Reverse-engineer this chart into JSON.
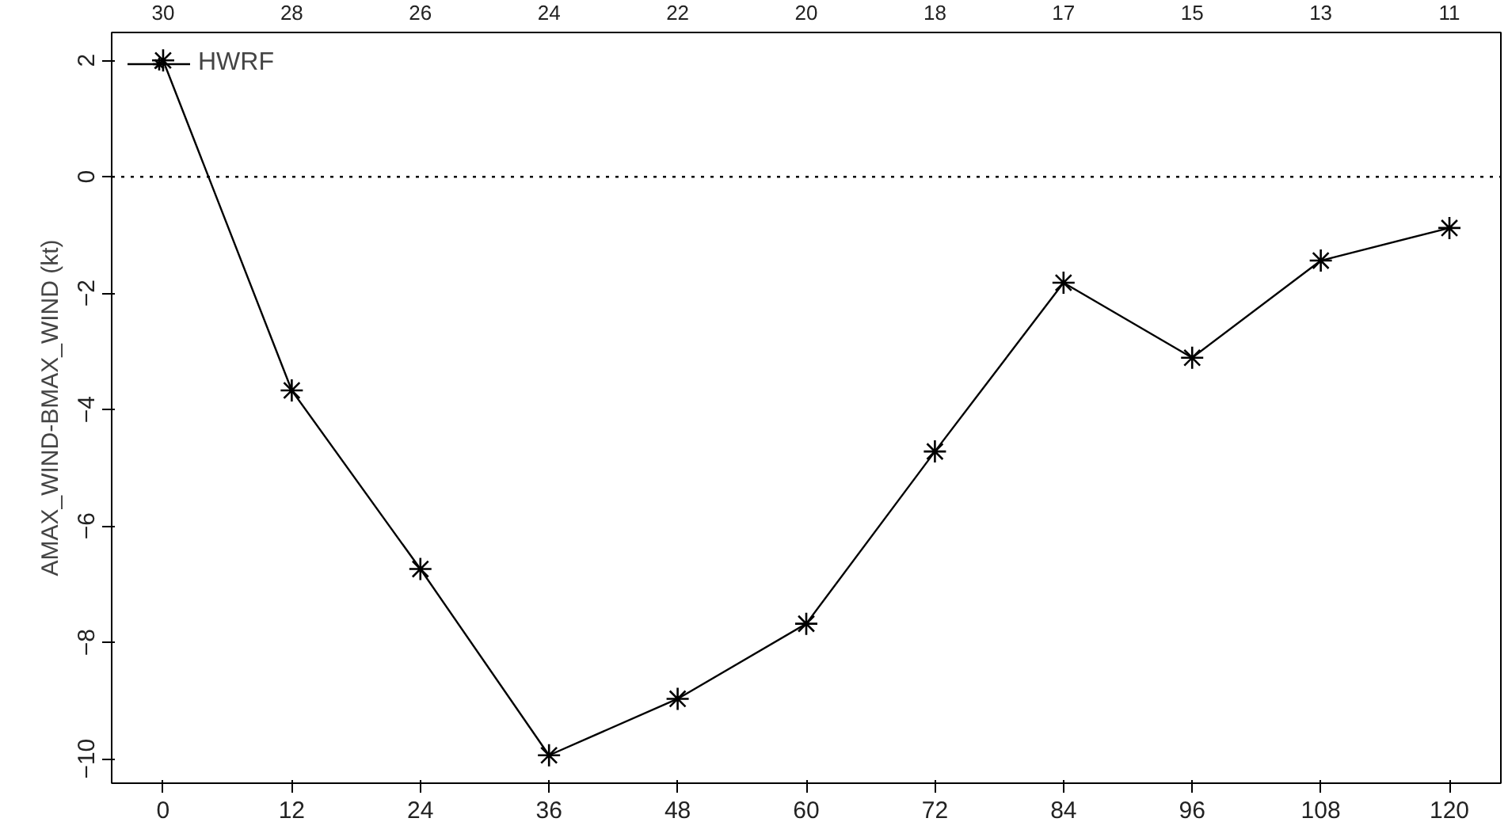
{
  "chart_data": {
    "type": "line",
    "ylabel": "AMAX_WIND-BMAX_WIND (kt)",
    "x": [
      0,
      12,
      24,
      36,
      48,
      60,
      72,
      84,
      96,
      108,
      120
    ],
    "series": [
      {
        "name": "HWRF",
        "color": "#000000",
        "values": [
          2.0,
          -3.67,
          -6.74,
          -9.94,
          -8.97,
          -7.68,
          -4.72,
          -1.82,
          -3.11,
          -1.44,
          -0.88
        ]
      }
    ],
    "xlim": [
      -4.8,
      124.8
    ],
    "ylim": [
      -10.42,
      2.48
    ],
    "xticks": [
      0,
      12,
      24,
      36,
      48,
      60,
      72,
      84,
      96,
      108,
      120
    ],
    "yticks": [
      -10,
      -8,
      -6,
      -4,
      -2,
      0,
      2
    ],
    "annotations": [
      "30",
      "28",
      "26",
      "24",
      "22",
      "20",
      "18",
      "17",
      "15",
      "13",
      "11"
    ],
    "ref_lines": [
      {
        "axis": "y",
        "value": 0,
        "label": null,
        "color": "#000000",
        "line_style": "dotted"
      }
    ],
    "legend": "top left",
    "marker": "cross",
    "line_style": "solid",
    "grid": false
  }
}
